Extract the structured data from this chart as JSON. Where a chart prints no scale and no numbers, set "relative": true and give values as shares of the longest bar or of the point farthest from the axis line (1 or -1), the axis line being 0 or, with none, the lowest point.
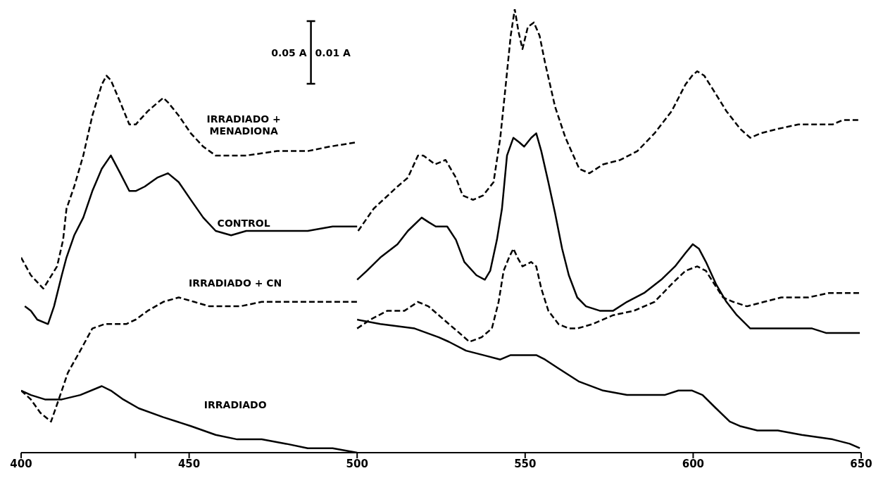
{
  "chart_data": {
    "type": "line",
    "relative": true,
    "xlim": [
      400,
      650
    ],
    "xticks": [
      400,
      {
        "value": 434,
        "label": null
      },
      450,
      500,
      550,
      600,
      650
    ],
    "marker": "none",
    "annotations": [
      "0.05 A",
      "0.01 A"
    ],
    "series": [
      {
        "name": "IRRADIADO + MENADIONA",
        "color": "#000000",
        "line_style": "dashed",
        "x": [
          400,
          402.9,
          406.6,
          410.7,
          412.5,
          413.5,
          415.8,
          418.5,
          421.2,
          424.0,
          425.4,
          426.7,
          429.5,
          432.2,
          434.1,
          437.7,
          442.3,
          443.7,
          446.9,
          450.5,
          454.2,
          457.9,
          462.5,
          467.0,
          476.2,
          485.3,
          491.8,
          500,
          null,
          500.3,
          504.9,
          512.0,
          515.1,
          518.1,
          519.7,
          523.2,
          526.3,
          529.4,
          531.4,
          534.5,
          537.5,
          540.6,
          542.6,
          544.1,
          545.7,
          546.9,
          548.0,
          549.2,
          550.8,
          552.6,
          554.3,
          555.9,
          558.9,
          562.0,
          566.1,
          569.1,
          573.2,
          578.3,
          583.4,
          588.5,
          593.6,
          597.7,
          599.7,
          601.2,
          603.3,
          605.8,
          609.9,
          614.0,
          617.0,
          620.1,
          625.2,
          631.3,
          637.4,
          641.5,
          644.5,
          649.6
        ],
        "values": [
          0.44,
          0.4,
          0.37,
          0.42,
          0.48,
          0.55,
          0.6,
          0.67,
          0.76,
          0.83,
          0.85,
          0.84,
          0.79,
          0.74,
          0.74,
          0.77,
          0.8,
          0.79,
          0.76,
          0.72,
          0.69,
          0.67,
          0.67,
          0.67,
          0.68,
          0.68,
          0.69,
          0.7,
          null,
          0.5,
          0.55,
          0.6,
          0.62,
          0.67,
          0.67,
          0.65,
          0.66,
          0.62,
          0.58,
          0.57,
          0.58,
          0.61,
          0.71,
          0.82,
          0.94,
          1.0,
          0.95,
          0.91,
          0.96,
          0.97,
          0.94,
          0.88,
          0.78,
          0.71,
          0.64,
          0.63,
          0.65,
          0.66,
          0.68,
          0.72,
          0.77,
          0.83,
          0.85,
          0.86,
          0.85,
          0.82,
          0.77,
          0.73,
          0.71,
          0.72,
          0.73,
          0.74,
          0.74,
          0.74,
          0.75,
          0.75
        ]
      },
      {
        "name": "CONTROL",
        "color": "#000000",
        "line_style": "solid",
        "x": [
          401.1,
          402.9,
          404.8,
          408.0,
          409.8,
          412.1,
          413.5,
          415.8,
          418.5,
          421.2,
          424.0,
          426.7,
          429.5,
          432.2,
          434.1,
          436.8,
          440.5,
          443.7,
          446.9,
          450.5,
          454.2,
          457.9,
          462.5,
          467.0,
          476.2,
          485.3,
          492.7,
          500,
          null,
          500,
          502.9,
          506.9,
          512.0,
          515.1,
          519.2,
          521.2,
          523.4,
          526.8,
          529.4,
          531.9,
          535.5,
          538.0,
          539.6,
          541.6,
          543.1,
          544.6,
          546.5,
          548.2,
          549.7,
          551.8,
          553.3,
          554.8,
          556.9,
          558.9,
          561.0,
          563.0,
          565.5,
          568.1,
          572.2,
          576.2,
          580.3,
          585.4,
          590.5,
          594.6,
          597.7,
          599.9,
          601.7,
          603.8,
          606.8,
          609.9,
          613.0,
          617.0,
          622.1,
          628.2,
          635.4,
          639.5,
          644.5,
          649.6
        ],
        "values": [
          0.33,
          0.32,
          0.3,
          0.29,
          0.33,
          0.4,
          0.44,
          0.49,
          0.53,
          0.59,
          0.64,
          0.67,
          0.63,
          0.59,
          0.59,
          0.6,
          0.62,
          0.63,
          0.61,
          0.57,
          0.53,
          0.5,
          0.49,
          0.5,
          0.5,
          0.5,
          0.51,
          0.51,
          null,
          0.39,
          0.41,
          0.44,
          0.47,
          0.5,
          0.53,
          0.52,
          0.51,
          0.51,
          0.48,
          0.43,
          0.4,
          0.39,
          0.41,
          0.48,
          0.55,
          0.67,
          0.71,
          0.7,
          0.69,
          0.71,
          0.72,
          0.68,
          0.61,
          0.54,
          0.46,
          0.4,
          0.35,
          0.33,
          0.32,
          0.32,
          0.34,
          0.36,
          0.39,
          0.42,
          0.45,
          0.47,
          0.46,
          0.43,
          0.38,
          0.34,
          0.31,
          0.28,
          0.28,
          0.28,
          0.28,
          0.27,
          0.27,
          0.27
        ]
      },
      {
        "name": "IRRADIADO + CN",
        "color": "#000000",
        "line_style": "dashed",
        "x": [
          400,
          402.9,
          405.7,
          408.9,
          411.2,
          413.9,
          417.6,
          421.2,
          424.9,
          428.6,
          431.3,
          434.1,
          437.7,
          442.3,
          446.9,
          451.5,
          456.0,
          459.7,
          465.2,
          471.6,
          480.8,
          489.9,
          500,
          null,
          500,
          503.9,
          509.0,
          514.1,
          518.1,
          521.2,
          524.3,
          527.3,
          530.4,
          533.4,
          537.0,
          540.1,
          542.1,
          543.6,
          545.2,
          546.5,
          547.7,
          549.2,
          551.8,
          553.3,
          554.8,
          556.9,
          559.9,
          563.0,
          565.5,
          570.1,
          576.2,
          582.4,
          588.5,
          593.6,
          597.7,
          601.2,
          603.8,
          606.3,
          608.9,
          611.9,
          616.0,
          621.1,
          626.2,
          634.3,
          640.4,
          645.1,
          649.6
        ],
        "values": [
          0.14,
          0.12,
          0.09,
          0.07,
          0.12,
          0.18,
          0.23,
          0.28,
          0.29,
          0.29,
          0.29,
          0.3,
          0.32,
          0.34,
          0.35,
          0.34,
          0.33,
          0.33,
          0.33,
          0.34,
          0.34,
          0.34,
          0.34,
          null,
          0.28,
          0.3,
          0.32,
          0.32,
          0.34,
          0.33,
          0.31,
          0.29,
          0.27,
          0.25,
          0.26,
          0.28,
          0.34,
          0.41,
          0.44,
          0.46,
          0.44,
          0.42,
          0.43,
          0.42,
          0.37,
          0.32,
          0.29,
          0.28,
          0.28,
          0.29,
          0.31,
          0.32,
          0.34,
          0.38,
          0.41,
          0.42,
          0.41,
          0.38,
          0.35,
          0.34,
          0.33,
          0.34,
          0.35,
          0.35,
          0.36,
          0.36,
          0.36
        ]
      },
      {
        "name": "IRRADIADO",
        "color": "#000000",
        "line_style": "solid",
        "x": [
          400,
          402.9,
          407.1,
          412.1,
          417.6,
          424.0,
          426.7,
          430.4,
          435.0,
          442.3,
          450.5,
          457.9,
          464.3,
          471.6,
          478.9,
          485.3,
          492.7,
          500,
          null,
          500,
          506.9,
          517.1,
          524.3,
          527.3,
          532.4,
          537.5,
          542.6,
          545.7,
          549.7,
          553.3,
          555.9,
          559.9,
          566.1,
          573.2,
          580.3,
          585.4,
          591.5,
          595.6,
          599.7,
          602.8,
          606.8,
          610.9,
          613.9,
          619.1,
          625.2,
          632.3,
          641.5,
          646.6,
          649.6
        ],
        "values": [
          0.14,
          0.13,
          0.12,
          0.12,
          0.13,
          0.15,
          0.14,
          0.12,
          0.1,
          0.08,
          0.06,
          0.04,
          0.03,
          0.03,
          0.02,
          0.01,
          0.01,
          0.0,
          null,
          0.3,
          0.29,
          0.28,
          0.26,
          0.25,
          0.23,
          0.22,
          0.21,
          0.22,
          0.22,
          0.22,
          0.21,
          0.19,
          0.16,
          0.14,
          0.13,
          0.13,
          0.13,
          0.14,
          0.14,
          0.13,
          0.1,
          0.07,
          0.06,
          0.05,
          0.05,
          0.04,
          0.03,
          0.02,
          0.01
        ]
      }
    ]
  }
}
